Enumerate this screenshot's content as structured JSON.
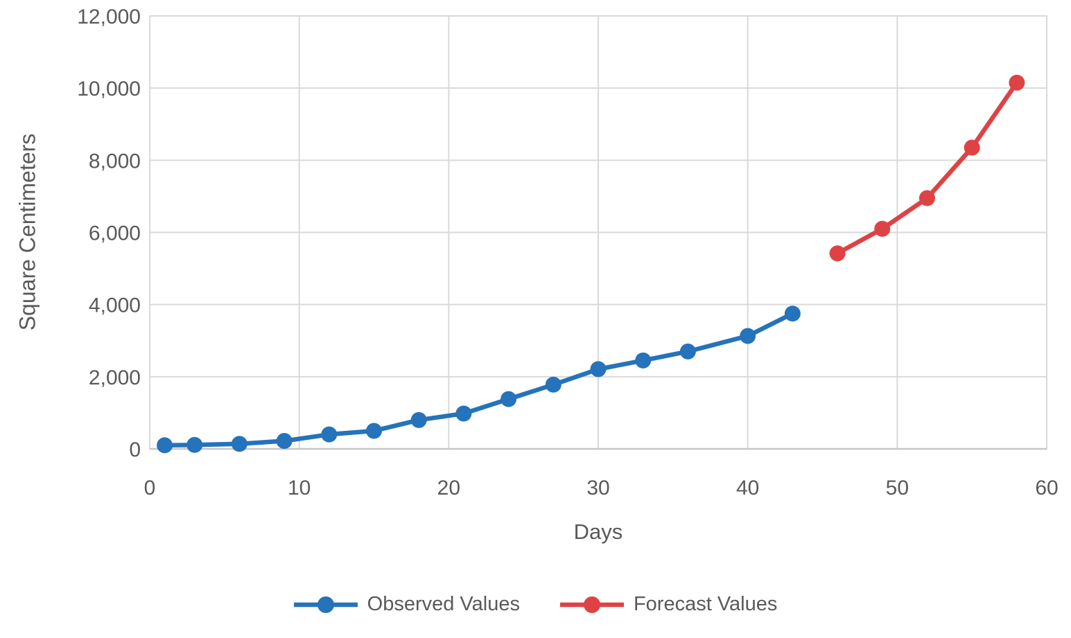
{
  "chart_data": {
    "type": "line",
    "title": "",
    "xlabel": "Days",
    "ylabel": "Square Centimeters",
    "xlim": [
      0,
      60
    ],
    "ylim": [
      0,
      12000
    ],
    "x_ticks": [
      0,
      10,
      20,
      30,
      40,
      50,
      60
    ],
    "y_ticks": [
      0,
      2000,
      4000,
      6000,
      8000,
      10000,
      12000
    ],
    "grid": true,
    "legend_position": "bottom",
    "series": [
      {
        "name": "Observed Values",
        "color": "#2573BA",
        "x": [
          1,
          3,
          6,
          9,
          12,
          15,
          18,
          21,
          24,
          27,
          30,
          33,
          36,
          40,
          43
        ],
        "values": [
          100,
          110,
          140,
          220,
          400,
          500,
          800,
          980,
          1380,
          1780,
          2210,
          2450,
          2700,
          3130,
          3750
        ]
      },
      {
        "name": "Forecast Values",
        "color": "#DF4244",
        "x": [
          46,
          49,
          52,
          55,
          58
        ],
        "values": [
          5420,
          6100,
          6950,
          8350,
          10150
        ]
      }
    ]
  },
  "styles": {
    "gridline_color": "#D9D9D9",
    "axis_line_color": "#C6C6C6",
    "label_color": "#595959",
    "background": "#FFFFFF"
  }
}
